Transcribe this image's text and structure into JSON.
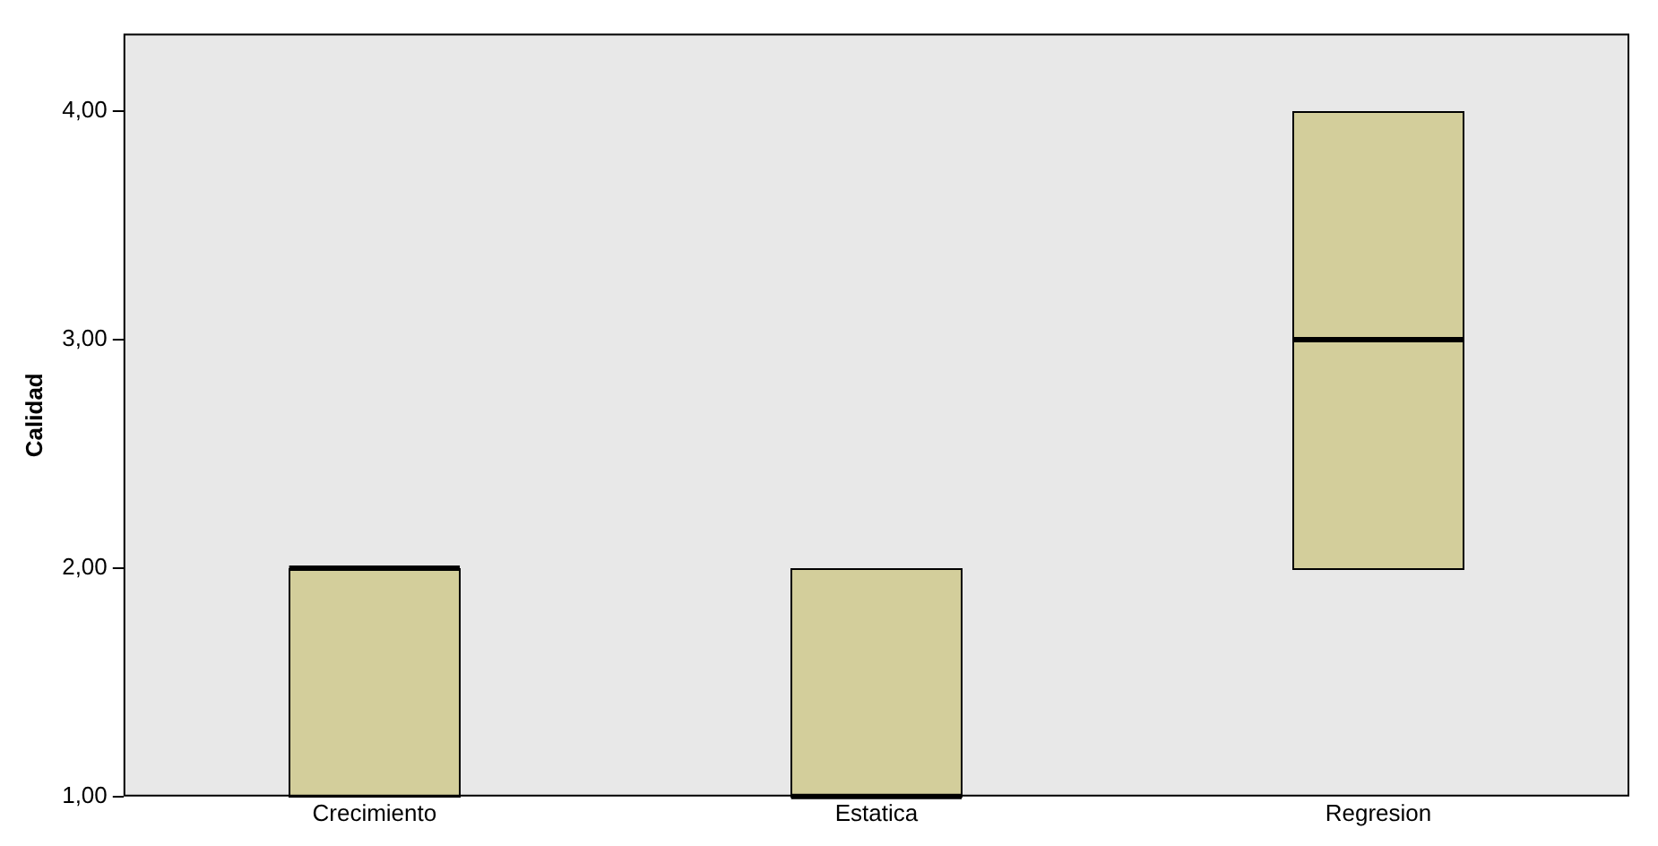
{
  "chart_data": {
    "type": "box",
    "ylabel": "Calidad",
    "categories": [
      "Crecimiento",
      "Estatica",
      "Regresion"
    ],
    "boxes": [
      {
        "low": 1,
        "q1": 1,
        "median": 2,
        "q3": 2,
        "high": 2
      },
      {
        "low": 1,
        "q1": 1,
        "median": 1,
        "q3": 2,
        "high": 2
      },
      {
        "low": 2,
        "q1": 2,
        "median": 3,
        "q3": 4,
        "high": 4
      }
    ],
    "color": "#d3ce9b",
    "ylim": [
      1,
      4.34
    ],
    "yticks": [
      {
        "value": 1,
        "label": "1,00"
      },
      {
        "value": 2,
        "label": "2,00"
      },
      {
        "value": 3,
        "label": "3,00"
      },
      {
        "value": 4,
        "label": "4,00"
      }
    ],
    "grid": false,
    "legend": false
  }
}
